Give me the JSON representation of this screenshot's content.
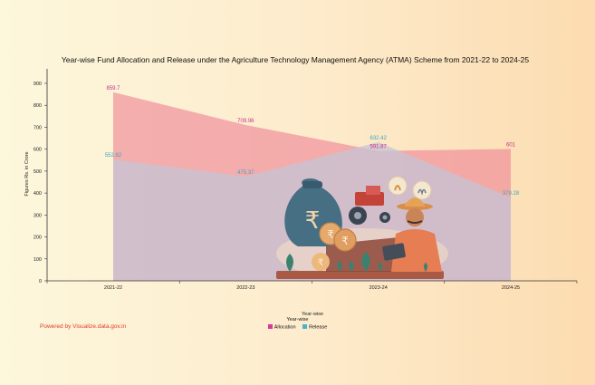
{
  "chart_data": {
    "type": "area",
    "title": "Year-wise Fund Allocation and Release under the Agriculture Technology Management Agency (ATMA) Scheme from 2021-22 to 2024-25",
    "xlabel": "Year-wise",
    "ylabel": "Figures Rs. in Crore",
    "categories": [
      "2021-22",
      "2022-23",
      "2023-24",
      "2024-25"
    ],
    "ylim": [
      0,
      900
    ],
    "yticks": [
      0,
      100,
      200,
      300,
      400,
      500,
      600,
      700,
      800,
      900
    ],
    "series": [
      {
        "name": "Allocation",
        "values": [
          859.7,
          709.96,
          591.87,
          601
        ],
        "labels": [
          "859.7",
          "709.96",
          "591.87",
          "601"
        ],
        "color": "#f08898",
        "label_color": "#c8308e",
        "legend_color": "#d6399b"
      },
      {
        "name": "Release",
        "values": [
          552.82,
          475.37,
          632.42,
          379.28
        ],
        "labels": [
          "552.82",
          "475.37",
          "632.42",
          "379.28"
        ],
        "color": "#c6c4d6",
        "label_color": "#3ba6c4",
        "legend_color": "#4ab3cc"
      }
    ],
    "legend_title": "Year-wise",
    "legend_position": "bottom-center",
    "grid": false
  },
  "footer": {
    "powered_by": "Powered by Visualize.data.gov.in"
  },
  "illustration": {
    "icon": "farmer-tractor-rupee-illustration"
  }
}
